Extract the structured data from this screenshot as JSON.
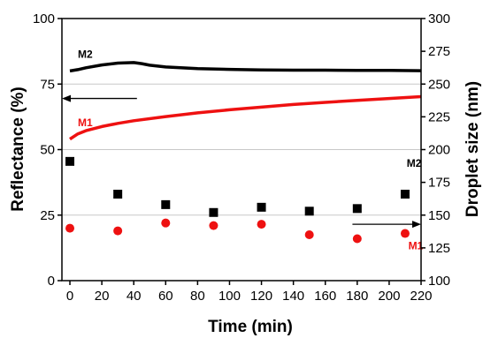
{
  "chart_data": {
    "type": "scatter",
    "xlabel": "Time (min)",
    "ylabel_left": "Reflectance (%)",
    "ylabel_right": "Droplet size (nm)",
    "xlim": [
      -5,
      220
    ],
    "ylim_left": [
      0,
      100
    ],
    "ylim_right": [
      100,
      300
    ],
    "x_ticks": [
      0,
      20,
      40,
      60,
      80,
      100,
      120,
      140,
      160,
      180,
      200,
      220
    ],
    "y_ticks_left": [
      0,
      25,
      50,
      75,
      100
    ],
    "y_ticks_right": [
      100,
      125,
      150,
      175,
      200,
      225,
      250,
      275,
      300
    ],
    "grid_lines_left": [
      25,
      50,
      75
    ],
    "series": [
      {
        "name": "M2",
        "kind": "line",
        "axis": "left",
        "color": "#000000",
        "x": [
          0,
          5,
          10,
          20,
          30,
          40,
          45,
          50,
          60,
          80,
          100,
          120,
          140,
          160,
          180,
          200,
          220
        ],
        "y": [
          80.0,
          80.5,
          81.2,
          82.3,
          83.0,
          83.2,
          82.8,
          82.2,
          81.5,
          80.9,
          80.6,
          80.4,
          80.3,
          80.3,
          80.2,
          80.2,
          80.1
        ]
      },
      {
        "name": "M1",
        "kind": "line",
        "axis": "left",
        "color": "#ee1111",
        "x": [
          0,
          5,
          10,
          20,
          30,
          40,
          60,
          80,
          100,
          120,
          140,
          160,
          180,
          200,
          220
        ],
        "y": [
          54.0,
          56.0,
          57.2,
          58.8,
          60.0,
          61.0,
          62.6,
          64.0,
          65.2,
          66.2,
          67.2,
          68.0,
          68.8,
          69.5,
          70.2
        ]
      },
      {
        "name": "M2",
        "kind": "scatter",
        "marker": "square",
        "axis": "right",
        "color": "#000000",
        "x": [
          0,
          30,
          60,
          90,
          120,
          150,
          180,
          210
        ],
        "y": [
          191,
          166,
          158,
          152,
          156,
          153,
          155,
          166
        ]
      },
      {
        "name": "M1",
        "kind": "scatter",
        "marker": "circle",
        "axis": "right",
        "color": "#ee1111",
        "x": [
          0,
          30,
          60,
          90,
          120,
          150,
          180,
          210
        ],
        "y": [
          140,
          138,
          144,
          142,
          143,
          135,
          132,
          136
        ]
      }
    ],
    "annotations": [
      {
        "text": "M2",
        "color": "#000000",
        "x": 5,
        "y": 85
      },
      {
        "text": "M1",
        "color": "#ee1111",
        "x": 5,
        "y": 59
      },
      {
        "text": "M2",
        "color": "#000000",
        "x": 211,
        "y": 187,
        "axis": "right"
      },
      {
        "text": "M1",
        "color": "#ee1111",
        "x": 212,
        "y": 124,
        "axis": "right"
      }
    ],
    "arrows": [
      {
        "direction": "left",
        "axis": "left",
        "from_x": 42,
        "to_x": -5,
        "y": 69.5
      },
      {
        "direction": "right",
        "axis": "right",
        "from_x": 177,
        "to_x": 220,
        "y": 143
      }
    ]
  }
}
